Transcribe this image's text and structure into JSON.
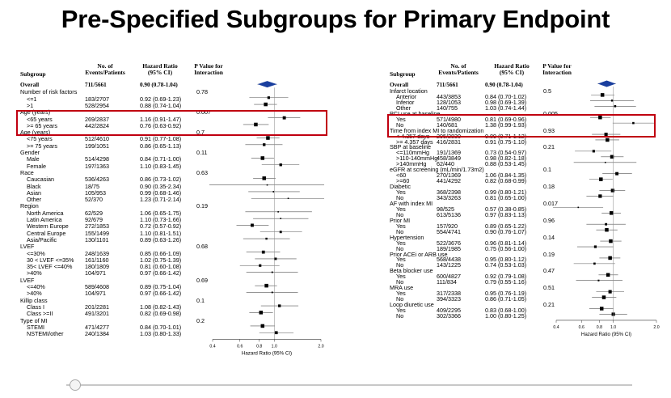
{
  "title": "Pre-Specified Subgroups for Primary Endpoint",
  "headers": {
    "subgroup": "Subgroup",
    "events": "No. of\nEvents/Patients",
    "hr": "Hazard Ratio\n(95% CI)",
    "p": "P Value for\nInteraction"
  },
  "chart_data": [
    {
      "type": "forest",
      "xlabel": "Hazard Ratio (95% CI)",
      "xticks": [
        0.4,
        0.6,
        0.8,
        1.0,
        2.0
      ],
      "xlim": [
        0.4,
        2.0
      ],
      "xscale": "log",
      "rows": [
        {
          "label": "Overall",
          "events": "711/5661",
          "hr_text": "0.90 (0.78-1.04)",
          "p": "",
          "hr": 0.9,
          "lo": 0.78,
          "hi": 1.04,
          "bold": true,
          "diamond": true
        },
        {
          "label": "Number of risk factors",
          "p": "0.78",
          "group": true
        },
        {
          "label": "<=1",
          "events": "183/2707",
          "hr_text": "0.92 (0.69-1.23)",
          "hr": 0.92,
          "lo": 0.69,
          "hi": 1.23
        },
        {
          "label": ">1",
          "events": "528/2954",
          "hr_text": "0.88 (0.74-1.04)",
          "hr": 0.88,
          "lo": 0.74,
          "hi": 1.04
        },
        {
          "label": "Age (years)",
          "p": "0.007",
          "group": true
        },
        {
          "label": "<65 years",
          "events": "269/2837",
          "hr_text": "1.16 (0.91-1.47)",
          "hr": 1.16,
          "lo": 0.91,
          "hi": 1.47
        },
        {
          "label": ">= 65 years",
          "events": "442/2824",
          "hr_text": "0.76 (0.63-0.92)",
          "hr": 0.76,
          "lo": 0.63,
          "hi": 0.92
        },
        {
          "label": "Age (years)",
          "p": "0.7",
          "group": true
        },
        {
          "label": "<75 years",
          "events": "512/4610",
          "hr_text": "0.91 (0.77-1.08)",
          "hr": 0.91,
          "lo": 0.77,
          "hi": 1.08
        },
        {
          "label": ">= 75 years",
          "events": "199/1051",
          "hr_text": "0.86 (0.65-1.13)",
          "hr": 0.86,
          "lo": 0.65,
          "hi": 1.13
        },
        {
          "label": "Gender",
          "p": "0.11",
          "group": true
        },
        {
          "label": "Male",
          "events": "514/4298",
          "hr_text": "0.84 (0.71-1.00)",
          "hr": 0.84,
          "lo": 0.71,
          "hi": 1.0
        },
        {
          "label": "Female",
          "events": "197/1363",
          "hr_text": "1.10 (0.83-1.45)",
          "hr": 1.1,
          "lo": 0.83,
          "hi": 1.45
        },
        {
          "label": "Race",
          "p": "0.63",
          "group": true
        },
        {
          "label": "Caucasian",
          "events": "536/4263",
          "hr_text": "0.86 (0.73-1.02)",
          "hr": 0.86,
          "lo": 0.73,
          "hi": 1.02
        },
        {
          "label": "Black",
          "events": "18/75",
          "hr_text": "0.90 (0.35-2.34)",
          "hr": 0.9,
          "lo": 0.35,
          "hi": 2.34
        },
        {
          "label": "Asian",
          "events": "105/953",
          "hr_text": "0.99 (0.68-1.46)",
          "hr": 0.99,
          "lo": 0.68,
          "hi": 1.46
        },
        {
          "label": "Other",
          "events": "52/370",
          "hr_text": "1.23 (0.71-2.14)",
          "hr": 1.23,
          "lo": 0.71,
          "hi": 2.14
        },
        {
          "label": "Region",
          "p": "0.19",
          "group": true
        },
        {
          "label": "North America",
          "events": "62/529",
          "hr_text": "1.06 (0.65-1.75)",
          "hr": 1.06,
          "lo": 0.65,
          "hi": 1.75
        },
        {
          "label": "Latin America",
          "events": "92/679",
          "hr_text": "1.10 (0.73-1.66)",
          "hr": 1.1,
          "lo": 0.73,
          "hi": 1.66
        },
        {
          "label": "Western Europe",
          "events": "272/1853",
          "hr_text": "0.72 (0.57-0.92)",
          "hr": 0.72,
          "lo": 0.57,
          "hi": 0.92
        },
        {
          "label": "Central Europe",
          "events": "155/1499",
          "hr_text": "1.10 (0.81-1.51)",
          "hr": 1.1,
          "lo": 0.81,
          "hi": 1.51
        },
        {
          "label": "Asia/Pacific",
          "events": "130/1101",
          "hr_text": "0.89 (0.63-1.26)",
          "hr": 0.89,
          "lo": 0.63,
          "hi": 1.26
        },
        {
          "label": "LVEF",
          "p": "0.68",
          "group": true
        },
        {
          "label": "<=30%",
          "events": "248/1639",
          "hr_text": "0.85 (0.66-1.09)",
          "hr": 0.85,
          "lo": 0.66,
          "hi": 1.09
        },
        {
          "label": "30 < LVEF <=35%",
          "events": "161/1160",
          "hr_text": "1.02 (0.75-1.39)",
          "hr": 1.02,
          "lo": 0.75,
          "hi": 1.39
        },
        {
          "label": "35< LVEF <=40%",
          "events": "180/1809",
          "hr_text": "0.81 (0.60-1.08)",
          "hr": 0.81,
          "lo": 0.6,
          "hi": 1.08
        },
        {
          "label": ">40%",
          "events": "104/971",
          "hr_text": "0.97 (0.66-1.42)",
          "hr": 0.97,
          "lo": 0.66,
          "hi": 1.42
        },
        {
          "label": "LVEF",
          "p": "0.69",
          "group": true
        },
        {
          "label": "<=40%",
          "events": "589/4608",
          "hr_text": "0.89 (0.75-1.04)",
          "hr": 0.89,
          "lo": 0.75,
          "hi": 1.04
        },
        {
          "label": ">40%",
          "events": "104/971",
          "hr_text": "0.97 (0.66-1.42)",
          "hr": 0.97,
          "lo": 0.66,
          "hi": 1.42
        },
        {
          "label": "Killip class",
          "p": "0.1",
          "group": true
        },
        {
          "label": "Class I",
          "events": "201/2281",
          "hr_text": "1.08 (0.82-1.43)",
          "hr": 1.08,
          "lo": 0.82,
          "hi": 1.43
        },
        {
          "label": "Class >=II",
          "events": "491/3201",
          "hr_text": "0.82 (0.69-0.98)",
          "hr": 0.82,
          "lo": 0.69,
          "hi": 0.98
        },
        {
          "label": "Type of MI",
          "p": "0.2",
          "group": true
        },
        {
          "label": "STEMI",
          "events": "471/4277",
          "hr_text": "0.84 (0.70-1.01)",
          "hr": 0.84,
          "lo": 0.7,
          "hi": 1.01
        },
        {
          "label": "NSTEMI/other",
          "events": "240/1384",
          "hr_text": "1.03 (0.80-1.33)",
          "hr": 1.03,
          "lo": 0.8,
          "hi": 1.33
        }
      ]
    },
    {
      "type": "forest",
      "xlabel": "Hazard Ratio (95% CI)",
      "xticks": [
        0.4,
        0.6,
        0.8,
        1.0,
        2.0
      ],
      "xlim": [
        0.4,
        2.0
      ],
      "xscale": "log",
      "rows": [
        {
          "label": "Overall",
          "events": "711/5661",
          "hr_text": "0.90 (0.78-1.04)",
          "p": "",
          "hr": 0.9,
          "lo": 0.78,
          "hi": 1.04,
          "bold": true,
          "diamond": true
        },
        {
          "label": "Infarct location",
          "p": "0.5",
          "group": true
        },
        {
          "label": "Anterior",
          "events": "443/3853",
          "hr_text": "0.84 (0.70-1.02)",
          "hr": 0.84,
          "lo": 0.7,
          "hi": 1.02
        },
        {
          "label": "Inferior",
          "events": "128/1053",
          "hr_text": "0.98 (0.69-1.39)",
          "hr": 0.98,
          "lo": 0.69,
          "hi": 1.39
        },
        {
          "label": "Other",
          "events": "140/755",
          "hr_text": "1.03 (0.74-1.44)",
          "hr": 1.03,
          "lo": 0.74,
          "hi": 1.44
        },
        {
          "label": "PCI use at baseline",
          "p": "0.005",
          "group": true
        },
        {
          "label": "Yes",
          "events": "571/4980",
          "hr_text": "0.81 (0.69-0.96)",
          "hr": 0.81,
          "lo": 0.69,
          "hi": 0.96
        },
        {
          "label": "No",
          "events": "140/681",
          "hr_text": "1.38 (0.99-1.93)",
          "hr": 1.38,
          "lo": 0.99,
          "hi": 1.93
        },
        {
          "label": "Time from index MI to randomization",
          "p": "0.93",
          "group": true
        },
        {
          "label": "< 4.357 days",
          "events": "295/2830",
          "hr_text": "0.89 (0.71-1.12)",
          "hr": 0.89,
          "lo": 0.71,
          "hi": 1.12
        },
        {
          "label": ">= 4.357 days",
          "events": "416/2831",
          "hr_text": "0.91 (0.75-1.10)",
          "hr": 0.91,
          "lo": 0.75,
          "hi": 1.1
        },
        {
          "label": "SBP at baseline",
          "p": "0.21",
          "group": true
        },
        {
          "label": "<=110mmHg",
          "events": "191/1369",
          "hr_text": "0.73 (0.54-0.97)",
          "hr": 0.73,
          "lo": 0.54,
          "hi": 0.97
        },
        {
          "label": ">110-140mmHg",
          "events": "458/3849",
          "hr_text": "0.98 (0.82-1.18)",
          "hr": 0.98,
          "lo": 0.82,
          "hi": 1.18
        },
        {
          "label": ">140mmHg",
          "events": "62/440",
          "hr_text": "0.88 (0.53-1.45)",
          "hr": 0.88,
          "lo": 0.53,
          "hi": 1.45
        },
        {
          "label": "eGFR at screening (mL/min/1.73m2)",
          "p": "0.1",
          "group": true
        },
        {
          "label": "<60",
          "events": "270/1369",
          "hr_text": "1.06 (0.84-1.35)",
          "hr": 1.06,
          "lo": 0.84,
          "hi": 1.35
        },
        {
          "label": ">=60",
          "events": "441/4292",
          "hr_text": "0.82 (0.68-0.99)",
          "hr": 0.82,
          "lo": 0.68,
          "hi": 0.99
        },
        {
          "label": "Diabetic",
          "p": "0.18",
          "group": true
        },
        {
          "label": "Yes",
          "events": "368/2398",
          "hr_text": "0.99 (0.80-1.21)",
          "hr": 0.99,
          "lo": 0.8,
          "hi": 1.21
        },
        {
          "label": "No",
          "events": "343/3263",
          "hr_text": "0.81 (0.65-1.00)",
          "hr": 0.81,
          "lo": 0.65,
          "hi": 1.0
        },
        {
          "label": "AF with index MI",
          "p": "0.017",
          "group": true
        },
        {
          "label": "Yes",
          "events": "98/525",
          "hr_text": "0.57 (0.38-0.85)",
          "hr": 0.57,
          "lo": 0.38,
          "hi": 0.85
        },
        {
          "label": "No",
          "events": "613/5136",
          "hr_text": "0.97 (0.83-1.13)",
          "hr": 0.97,
          "lo": 0.83,
          "hi": 1.13
        },
        {
          "label": "Prior MI",
          "p": "0.96",
          "group": true
        },
        {
          "label": "Yes",
          "events": "157/920",
          "hr_text": "0.89 (0.65-1.22)",
          "hr": 0.89,
          "lo": 0.65,
          "hi": 1.22
        },
        {
          "label": "No",
          "events": "554/4741",
          "hr_text": "0.90 (0.76-1.07)",
          "hr": 0.9,
          "lo": 0.76,
          "hi": 1.07
        },
        {
          "label": "Hypertension",
          "p": "0.14",
          "group": true
        },
        {
          "label": "Yes",
          "events": "522/3676",
          "hr_text": "0.96 (0.81-1.14)",
          "hr": 0.96,
          "lo": 0.81,
          "hi": 1.14
        },
        {
          "label": "No",
          "events": "189/1985",
          "hr_text": "0.75 (0.56-1.00)",
          "hr": 0.75,
          "lo": 0.56,
          "hi": 1.0
        },
        {
          "label": "Prior ACEi or ARB use",
          "p": "0.19",
          "group": true
        },
        {
          "label": "Yes",
          "events": "568/4438",
          "hr_text": "0.95 (0.80-1.12)",
          "hr": 0.95,
          "lo": 0.8,
          "hi": 1.12
        },
        {
          "label": "No",
          "events": "143/1225",
          "hr_text": "0.74 (0.53-1.03)",
          "hr": 0.74,
          "lo": 0.53,
          "hi": 1.03
        },
        {
          "label": "Beta blocker use",
          "p": "0.47",
          "group": true
        },
        {
          "label": "Yes",
          "events": "600/4827",
          "hr_text": "0.92 (0.79-1.08)",
          "hr": 0.92,
          "lo": 0.79,
          "hi": 1.08
        },
        {
          "label": "No",
          "events": "111/834",
          "hr_text": "0.79 (0.55-1.16)",
          "hr": 0.79,
          "lo": 0.55,
          "hi": 1.16
        },
        {
          "label": "MRA use",
          "p": "0.51",
          "group": true
        },
        {
          "label": "Yes",
          "events": "317/2338",
          "hr_text": "0.95 (0.76-1.19)",
          "hr": 0.95,
          "lo": 0.76,
          "hi": 1.19
        },
        {
          "label": "No",
          "events": "394/3323",
          "hr_text": "0.86 (0.71-1.05)",
          "hr": 0.86,
          "lo": 0.71,
          "hi": 1.05
        },
        {
          "label": "Loop diuretic use",
          "p": "0.21",
          "group": true
        },
        {
          "label": "Yes",
          "events": "409/2295",
          "hr_text": "0.83 (0.68-1.00)",
          "hr": 0.83,
          "lo": 0.68,
          "hi": 1.0
        },
        {
          "label": "No",
          "events": "302/3366",
          "hr_text": "1.00 (0.80-1.25)",
          "hr": 1.0,
          "lo": 0.8,
          "hi": 1.25
        }
      ]
    }
  ],
  "colors": {
    "highlight": "#c00010",
    "diamond": "#1a3f9e",
    "marker": "#000000",
    "slider": "#c8c8c8"
  }
}
